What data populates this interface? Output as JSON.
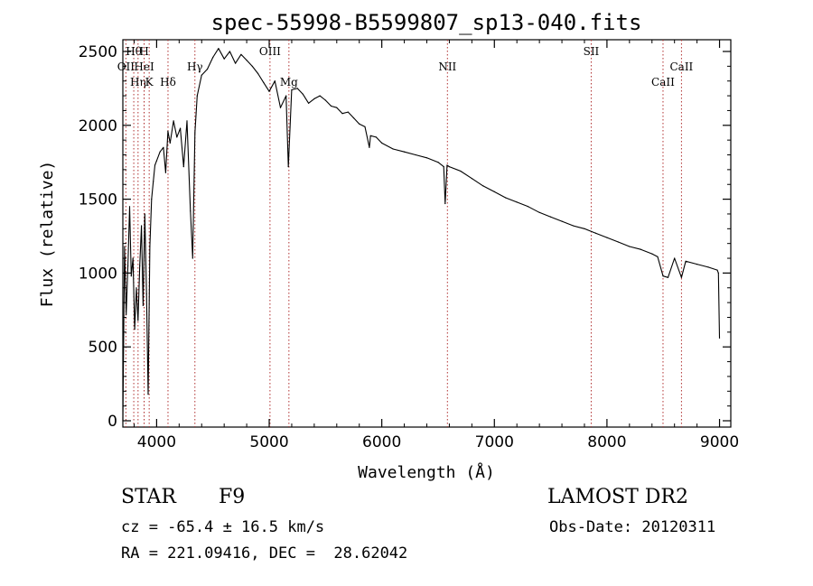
{
  "chart_data": {
    "type": "line",
    "title": "spec-55998-B5599807_sp13-040.fits",
    "xlabel": "Wavelength (Å)",
    "ylabel": "Flux (relative)",
    "xlim": [
      3700,
      9100
    ],
    "ylim": [
      0,
      2550
    ],
    "xticks": [
      "4000",
      "5000",
      "6000",
      "7000",
      "8000",
      "9000"
    ],
    "yticks": [
      "0",
      "500",
      "1000",
      "1500",
      "2000",
      "2500"
    ],
    "grid": false,
    "series": [
      {
        "x": [
          3700,
          3715,
          3730,
          3745,
          3760,
          3775,
          3790,
          3805,
          3820,
          3835,
          3850,
          3865,
          3880,
          3895,
          3910,
          3925,
          3940,
          3955,
          3970,
          3985,
          4000,
          4030,
          4060,
          4080,
          4100,
          4120,
          4150,
          4180,
          4210,
          4240,
          4270,
          4300,
          4320,
          4340,
          4360,
          4400,
          4450,
          4500,
          4550,
          4600,
          4650,
          4700,
          4750,
          4800,
          4850,
          4900,
          4950,
          5000,
          5050,
          5100,
          5150,
          5170,
          5200,
          5250,
          5300,
          5350,
          5400,
          5450,
          5500,
          5550,
          5600,
          5650,
          5700,
          5750,
          5800,
          5850,
          5890,
          5900,
          5950,
          6000,
          6100,
          6200,
          6300,
          6400,
          6500,
          6550,
          6563,
          6580,
          6600,
          6700,
          6800,
          6900,
          7000,
          7100,
          7200,
          7300,
          7400,
          7500,
          7600,
          7700,
          7800,
          7900,
          8000,
          8100,
          8200,
          8300,
          8400,
          8450,
          8498,
          8542,
          8600,
          8662,
          8700,
          8800,
          8900,
          8980,
          8990,
          9000
        ],
        "values": [
          0,
          1180,
          720,
          1050,
          1450,
          980,
          1100,
          620,
          900,
          680,
          1050,
          1320,
          780,
          1400,
          860,
          180,
          1180,
          1500,
          1620,
          1730,
          1760,
          1820,
          1850,
          1680,
          1960,
          1880,
          2030,
          1920,
          1980,
          1720,
          2030,
          1420,
          1100,
          1950,
          2200,
          2340,
          2380,
          2460,
          2520,
          2450,
          2500,
          2420,
          2480,
          2440,
          2400,
          2350,
          2290,
          2230,
          2300,
          2120,
          2200,
          1720,
          2240,
          2250,
          2210,
          2150,
          2180,
          2200,
          2170,
          2130,
          2120,
          2080,
          2090,
          2050,
          2010,
          1990,
          1850,
          1930,
          1920,
          1880,
          1840,
          1820,
          1800,
          1780,
          1750,
          1720,
          1470,
          1730,
          1720,
          1690,
          1640,
          1590,
          1550,
          1510,
          1480,
          1450,
          1410,
          1380,
          1350,
          1320,
          1300,
          1270,
          1240,
          1210,
          1180,
          1160,
          1130,
          1110,
          980,
          970,
          1100,
          970,
          1080,
          1060,
          1040,
          1020,
          1000,
          560
        ]
      }
    ],
    "lines": [
      {
        "label": "Hθ",
        "x": 3797,
        "row": 1
      },
      {
        "label": "OII",
        "x": 3727,
        "row": 2
      },
      {
        "label": "Hη",
        "x": 3835,
        "row": 3
      },
      {
        "label": "H",
        "x": 3889,
        "row": 1
      },
      {
        "label": "HeI",
        "x": 3889,
        "row": 2
      },
      {
        "label": "K",
        "x": 3934,
        "row": 3
      },
      {
        "label": "Hδ",
        "x": 4101,
        "row": 3
      },
      {
        "label": "Hγ",
        "x": 4340,
        "row": 2
      },
      {
        "label": "OIII",
        "x": 5007,
        "row": 1
      },
      {
        "label": "Mg",
        "x": 5175,
        "row": 3
      },
      {
        "label": "NII",
        "x": 6583,
        "row": 2
      },
      {
        "label": "SII",
        "x": 7860,
        "row": 1
      },
      {
        "label": "CaII",
        "x": 8498,
        "row": 3
      },
      {
        "label": "CaII",
        "x": 8662,
        "row": 2
      }
    ]
  },
  "info": {
    "object": "STAR",
    "subclass": "F9",
    "survey": "LAMOST DR2",
    "cz": "cz = -65.4 ± 16.5 km/s",
    "obs_date": "Obs-Date: 20120311",
    "radec": "RA = 221.09416, DEC =  28.62042"
  }
}
